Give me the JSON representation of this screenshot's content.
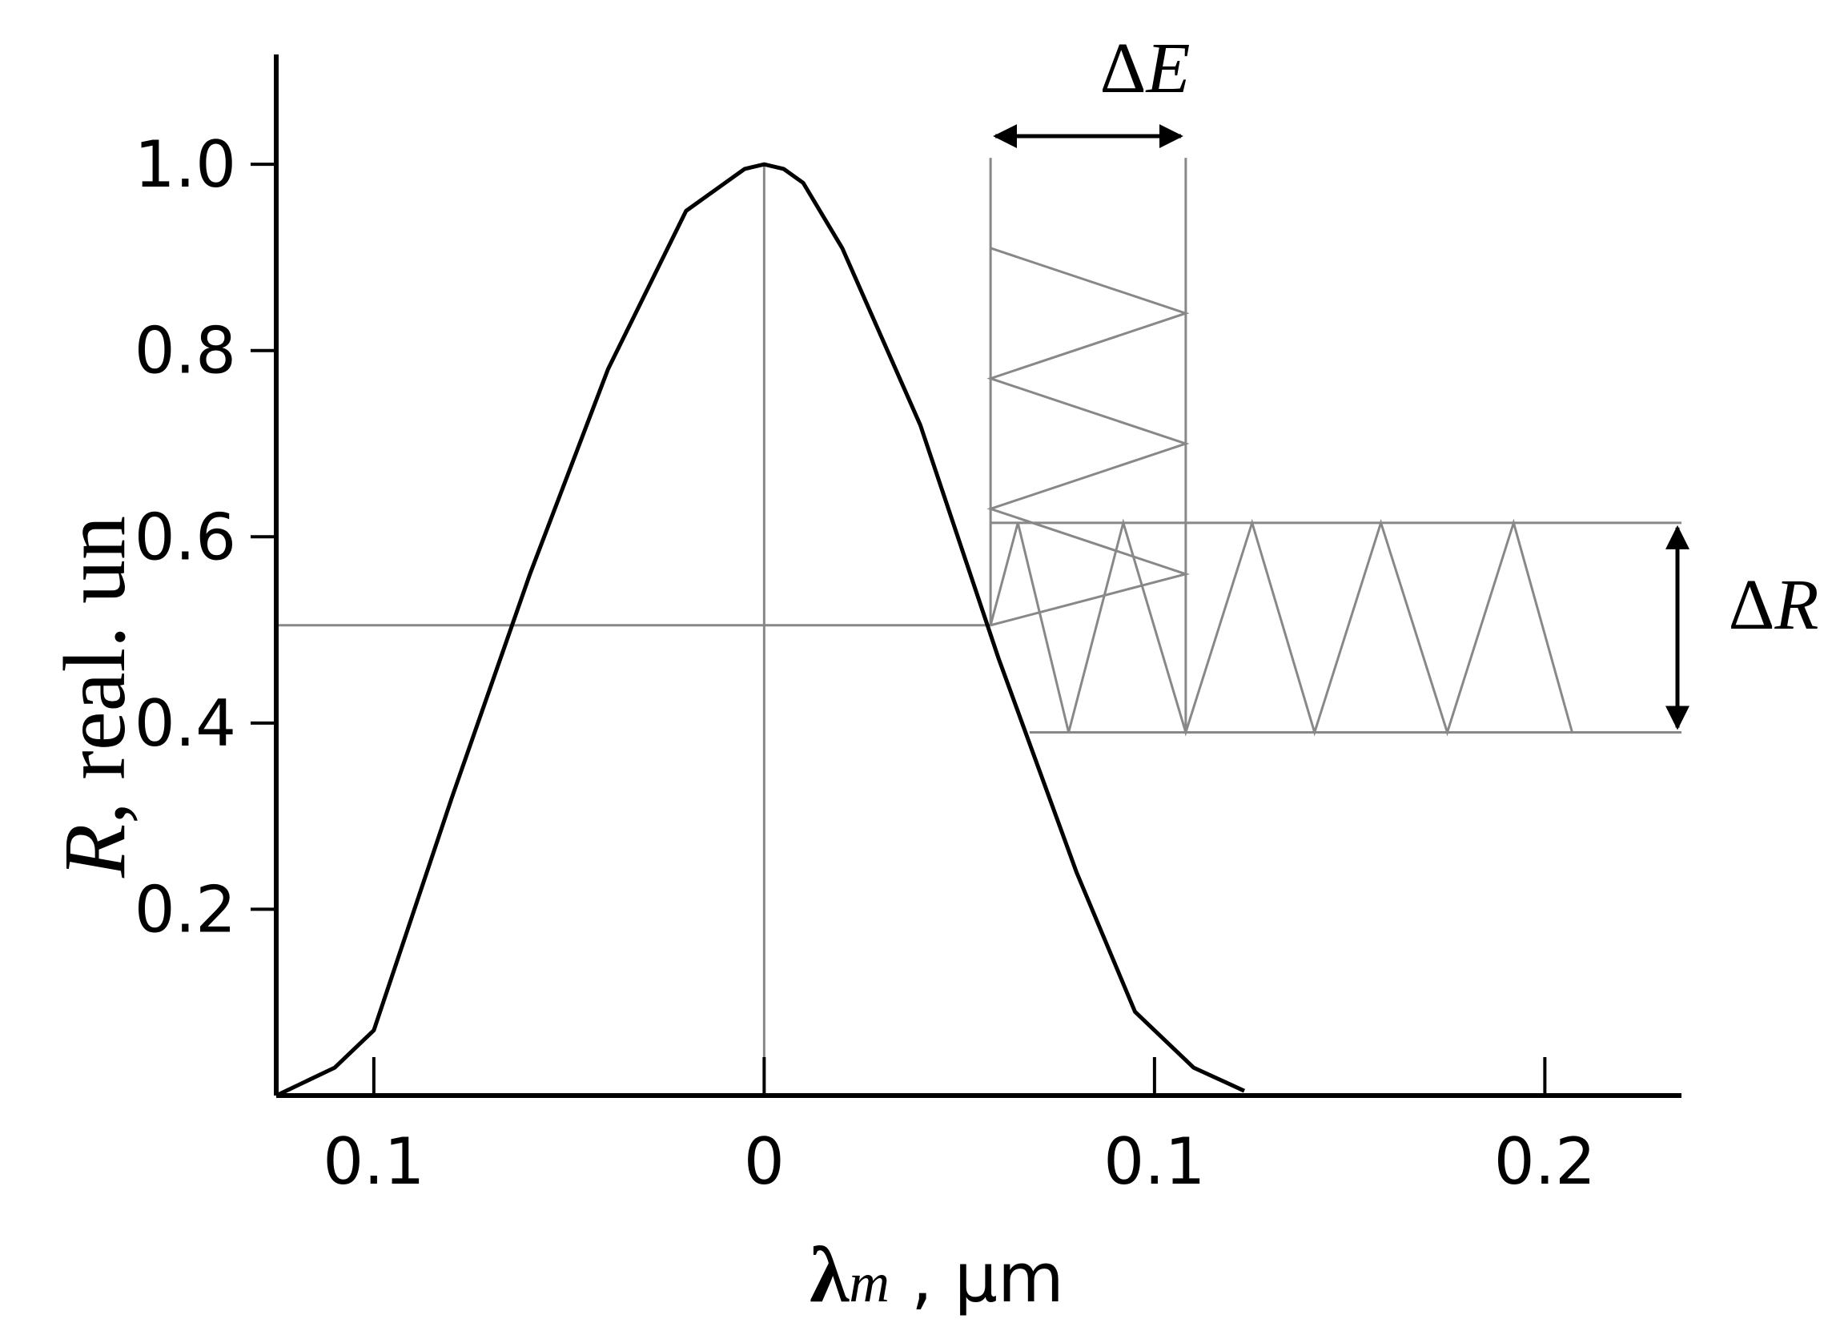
{
  "chart_data": {
    "type": "line",
    "title": "",
    "xlabel": "λm , μm",
    "xlabel_parts": {
      "symbol": "λ",
      "subscript": "m",
      "unit": " , μm"
    },
    "ylabel": "R, real. un",
    "ylabel_parts": {
      "symbol": "R",
      "rest": ", real. un"
    },
    "xlim": [
      -0.125,
      0.235
    ],
    "ylim": [
      0,
      1.05
    ],
    "grid": false,
    "x_ticks": [
      {
        "value": -0.1,
        "label": "0.1"
      },
      {
        "value": 0,
        "label": "0"
      },
      {
        "value": 0.1,
        "label": "0.1"
      },
      {
        "value": 0.2,
        "label": "0.2"
      }
    ],
    "y_ticks": [
      {
        "value": 0.2,
        "label": "0.2"
      },
      {
        "value": 0.4,
        "label": "0.4"
      },
      {
        "value": 0.6,
        "label": "0.6"
      },
      {
        "value": 0.8,
        "label": "0.8"
      },
      {
        "value": 1.0,
        "label": "1.0"
      }
    ],
    "series": [
      {
        "color": "#000000",
        "x": [
          -0.125,
          -0.11,
          -0.1,
          -0.08,
          -0.06,
          -0.04,
          -0.02,
          -0.01,
          -0.005,
          0,
          0.005,
          0.01,
          0.02,
          0.04,
          0.06,
          0.08,
          0.095,
          0.11,
          0.123
        ],
        "y": [
          0,
          0.03,
          0.07,
          0.32,
          0.56,
          0.78,
          0.95,
          0.98,
          0.995,
          1.0,
          0.995,
          0.98,
          0.91,
          0.72,
          0.47,
          0.24,
          0.09,
          0.03,
          0.005
        ]
      }
    ],
    "reference_lines": {
      "color": "#888888",
      "vertical_at_x": 0,
      "horizontal_at_y": 0.505,
      "horizontal_x_range": [
        -0.125,
        0.058
      ]
    },
    "delta_E_region": {
      "x_range": [
        0.058,
        0.108
      ],
      "y_top": 1.0,
      "y_bottom": 0.505,
      "zigzag_y": [
        0.91,
        0.84,
        0.77,
        0.7,
        0.63,
        0.56,
        0.505
      ]
    },
    "delta_R_region": {
      "y_top": 0.615,
      "y_bottom": 0.39,
      "x_end": 0.235,
      "zigzag_x": [
        0.058,
        0.065,
        0.078,
        0.092,
        0.108,
        0.125,
        0.141,
        0.158,
        0.175,
        0.192,
        0.207
      ],
      "zigzag_start_y": 0.505
    },
    "annotations": [
      {
        "id": "delta-E",
        "label": "ΔE",
        "parts": {
          "symbol": "Δ",
          "var": "E"
        }
      },
      {
        "id": "delta-R",
        "label": "ΔR",
        "parts": {
          "symbol": "Δ",
          "var": "R"
        }
      }
    ]
  }
}
